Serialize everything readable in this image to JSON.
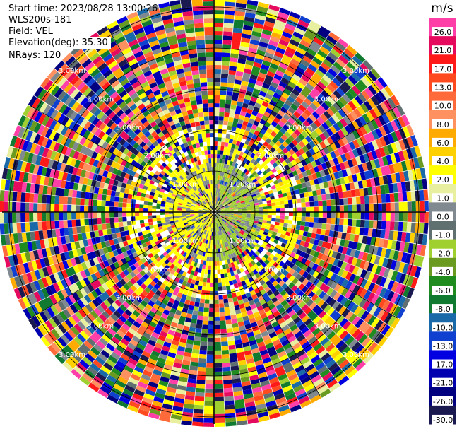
{
  "header": {
    "start_time": "Start time: 2023/08/28 13:00:26",
    "instrument": "WLS200s-181",
    "field": "Field: VEL",
    "elevation": "Elevation(deg): 35.30",
    "nrays": "NRays: 120"
  },
  "colorbar": {
    "unit": "m/s",
    "ticks": [
      "26.0",
      "21.0",
      "17.0",
      "13.0",
      "10.0",
      "8.0",
      "6.0",
      "4.0",
      "2.0",
      "1.0",
      "0.0",
      "-1.0",
      "-2.0",
      "-4.0",
      "-6.0",
      "-8.0",
      "-10.0",
      "-13.0",
      "-17.0",
      "-21.0",
      "-26.0",
      "-30.0"
    ],
    "colors": [
      "#ff3fa8",
      "#e60a5f",
      "#ff1a1a",
      "#ff4a20",
      "#ff6a3a",
      "#ff9060",
      "#ffaa00",
      "#ffd000",
      "#ffff00",
      "#e8f0a0",
      "#808890",
      "#607070",
      "#a0d030",
      "#6a9a20",
      "#208c20",
      "#107a30",
      "#1a6aaa",
      "#1040d0",
      "#0000e0",
      "#0000b0",
      "#000080",
      "#1a1a50"
    ]
  },
  "chart_data": {
    "type": "heatmap",
    "projection": "polar-ppi",
    "field": "VEL",
    "unit": "m/s",
    "n_rays": 120,
    "elevation_deg": 35.3,
    "range_ring_labels": [
      "1.00km",
      "2.00km",
      "3.00km"
    ],
    "legend_placement": "right",
    "grid": true
  }
}
